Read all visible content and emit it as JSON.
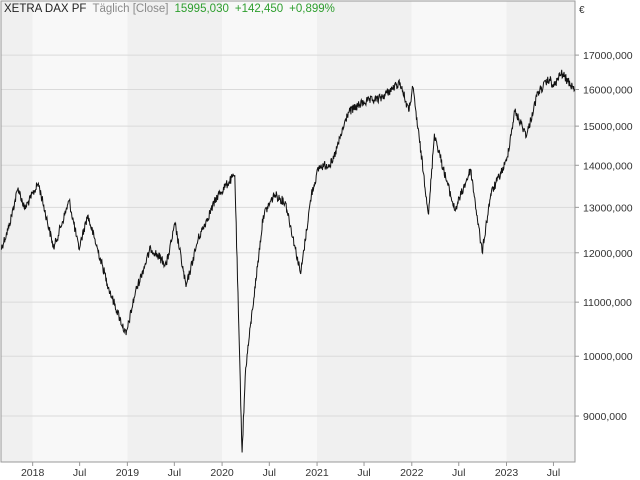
{
  "header": {
    "instrument": "XETRA DAX PF",
    "period": "Täglich [Close]",
    "last": "15995,030",
    "change": "+142,450",
    "change_pct": "+0,899%",
    "currency": "€"
  },
  "colors": {
    "line": "#111111",
    "band_a": "#f0f0f0",
    "band_b": "#f8f8f8",
    "grid": "#dadada",
    "frame": "#999999",
    "positive": "#2e9e2e"
  },
  "chart_data": {
    "type": "line",
    "title": "XETRA DAX PF",
    "xlabel": "",
    "ylabel": "",
    "y_scale": "log",
    "ylim": [
      8300,
      18700
    ],
    "x_range": [
      "2017-09-01",
      "2023-09-22"
    ],
    "x_ticks": [
      {
        "date": "2018-01-01",
        "label": "2018"
      },
      {
        "date": "2018-07-01",
        "label": "Jul"
      },
      {
        "date": "2019-01-01",
        "label": "2019"
      },
      {
        "date": "2019-07-01",
        "label": "Jul"
      },
      {
        "date": "2020-01-01",
        "label": "2020"
      },
      {
        "date": "2020-07-01",
        "label": "Jul"
      },
      {
        "date": "2021-01-01",
        "label": "2021"
      },
      {
        "date": "2021-07-01",
        "label": "Jul"
      },
      {
        "date": "2022-01-01",
        "label": "2022"
      },
      {
        "date": "2022-07-01",
        "label": "Jul"
      },
      {
        "date": "2023-01-01",
        "label": "2023"
      },
      {
        "date": "2023-07-01",
        "label": "Jul"
      }
    ],
    "y_ticks": [
      {
        "value": 9000,
        "label": "9000,000"
      },
      {
        "value": 10000,
        "label": "10000,000"
      },
      {
        "value": 11000,
        "label": "11000,000"
      },
      {
        "value": 12000,
        "label": "12000,000"
      },
      {
        "value": 13000,
        "label": "13000,000"
      },
      {
        "value": 14000,
        "label": "14000,000"
      },
      {
        "value": 15000,
        "label": "15000,000"
      },
      {
        "value": 16000,
        "label": "16000,000"
      },
      {
        "value": 17000,
        "label": "17000,000"
      }
    ],
    "grid": true,
    "series": [
      {
        "x": [
          "2017-09-01",
          "2017-10-01",
          "2017-11-06",
          "2017-12-01",
          "2018-01-23",
          "2018-03-23",
          "2018-05-22",
          "2018-06-28",
          "2018-08-01",
          "2018-10-26",
          "2018-12-27",
          "2019-02-01",
          "2019-04-01",
          "2019-05-31",
          "2019-07-04",
          "2019-08-15",
          "2019-10-01",
          "2019-12-13",
          "2020-01-17",
          "2020-02-19",
          "2020-03-18",
          "2020-04-01",
          "2020-06-08",
          "2020-07-21",
          "2020-09-02",
          "2020-10-30",
          "2020-12-10",
          "2021-01-08",
          "2021-03-01",
          "2021-05-01",
          "2021-07-01",
          "2021-09-01",
          "2021-11-17",
          "2021-12-20",
          "2022-01-05",
          "2022-03-07",
          "2022-03-29",
          "2022-05-01",
          "2022-06-16",
          "2022-08-16",
          "2022-09-29",
          "2022-11-01",
          "2023-01-01",
          "2023-02-02",
          "2023-03-20",
          "2023-05-01",
          "2023-06-16",
          "2023-07-01",
          "2023-07-31",
          "2023-09-22"
        ],
        "values": [
          12080,
          12550,
          13460,
          12960,
          13560,
          12100,
          13150,
          12080,
          12820,
          11200,
          10380,
          11200,
          12100,
          11750,
          12620,
          11300,
          12300,
          13250,
          13520,
          13760,
          8440,
          9800,
          12820,
          13300,
          13100,
          11560,
          13300,
          13950,
          14060,
          15370,
          15650,
          15750,
          16200,
          15400,
          16050,
          12840,
          14800,
          13950,
          12930,
          13900,
          12010,
          13300,
          14100,
          15400,
          14760,
          15900,
          16300,
          16070,
          16470,
          16000
        ]
      }
    ]
  }
}
